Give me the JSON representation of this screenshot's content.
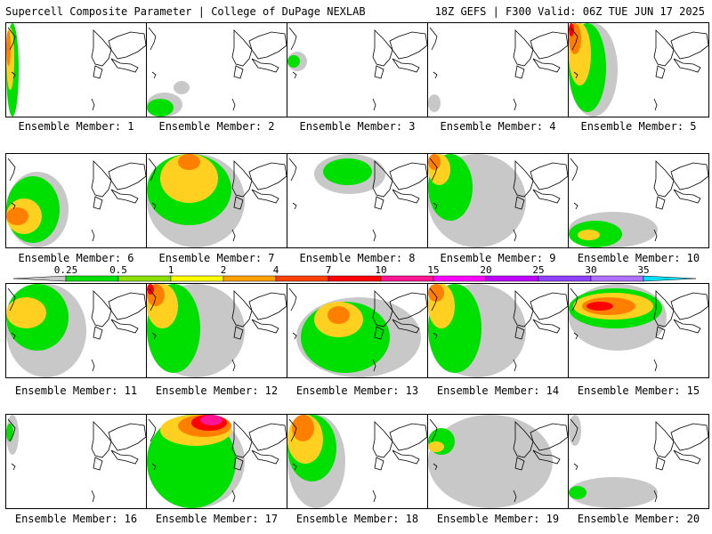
{
  "header": {
    "left": "Supercell Composite Parameter | College of DuPage NEXLAB",
    "right": "18Z GEFS | F300 Valid: 06Z TUE JUN 17 2025"
  },
  "caption_prefix": "Ensemble Member:",
  "members": [
    {
      "number": "1",
      "blobs": [
        {
          "x": 0,
          "y": 0,
          "w": 14,
          "h": 105,
          "c": "#00e000"
        },
        {
          "x": 0,
          "y": 5,
          "w": 9,
          "h": 70,
          "c": "#ffd020"
        },
        {
          "x": 0,
          "y": 8,
          "w": 5,
          "h": 40,
          "c": "#ff8000"
        }
      ]
    },
    {
      "number": "2",
      "blobs": [
        {
          "x": 0,
          "y": 78,
          "w": 40,
          "h": 27,
          "c": "#c8c8c8"
        },
        {
          "x": 0,
          "y": 85,
          "w": 30,
          "h": 20,
          "c": "#00e000"
        },
        {
          "x": 30,
          "y": 65,
          "w": 18,
          "h": 15,
          "c": "#c8c8c8"
        }
      ]
    },
    {
      "number": "3",
      "blobs": [
        {
          "x": 0,
          "y": 32,
          "w": 22,
          "h": 22,
          "c": "#c8c8c8"
        },
        {
          "x": 0,
          "y": 36,
          "w": 14,
          "h": 14,
          "c": "#00e000"
        }
      ]
    },
    {
      "number": "4",
      "blobs": [
        {
          "x": 0,
          "y": 80,
          "w": 14,
          "h": 20,
          "c": "#c8c8c8"
        }
      ]
    },
    {
      "number": "5",
      "blobs": [
        {
          "x": 0,
          "y": 0,
          "w": 55,
          "h": 105,
          "c": "#c8c8c8"
        },
        {
          "x": 0,
          "y": 0,
          "w": 42,
          "h": 100,
          "c": "#00e000"
        },
        {
          "x": 0,
          "y": 0,
          "w": 25,
          "h": 70,
          "c": "#ffd020"
        },
        {
          "x": 0,
          "y": 0,
          "w": 14,
          "h": 35,
          "c": "#ff8000"
        },
        {
          "x": 0,
          "y": 0,
          "w": 6,
          "h": 15,
          "c": "#ff0000"
        }
      ]
    },
    {
      "number": "6",
      "blobs": [
        {
          "x": 0,
          "y": 20,
          "w": 70,
          "h": 85,
          "c": "#c8c8c8"
        },
        {
          "x": 0,
          "y": 25,
          "w": 60,
          "h": 75,
          "c": "#00e000"
        },
        {
          "x": 0,
          "y": 50,
          "w": 40,
          "h": 40,
          "c": "#ffd020"
        },
        {
          "x": 0,
          "y": 60,
          "w": 25,
          "h": 20,
          "c": "#ff8000"
        }
      ]
    },
    {
      "number": "7",
      "blobs": [
        {
          "x": 0,
          "y": 0,
          "w": 110,
          "h": 105,
          "c": "#c8c8c8"
        },
        {
          "x": 0,
          "y": 0,
          "w": 95,
          "h": 80,
          "c": "#00e000"
        },
        {
          "x": 15,
          "y": 0,
          "w": 65,
          "h": 55,
          "c": "#ffd020"
        },
        {
          "x": 35,
          "y": 0,
          "w": 25,
          "h": 18,
          "c": "#ff8000"
        }
      ]
    },
    {
      "number": "8",
      "blobs": [
        {
          "x": 30,
          "y": 0,
          "w": 80,
          "h": 45,
          "c": "#c8c8c8"
        },
        {
          "x": 40,
          "y": 5,
          "w": 55,
          "h": 30,
          "c": "#00e000"
        }
      ]
    },
    {
      "number": "9",
      "blobs": [
        {
          "x": 0,
          "y": 0,
          "w": 110,
          "h": 105,
          "c": "#c8c8c8"
        },
        {
          "x": 0,
          "y": 0,
          "w": 50,
          "h": 75,
          "c": "#00e000"
        },
        {
          "x": 0,
          "y": 0,
          "w": 25,
          "h": 35,
          "c": "#ffd020"
        },
        {
          "x": 0,
          "y": 0,
          "w": 14,
          "h": 18,
          "c": "#ff8000"
        }
      ]
    },
    {
      "number": "10",
      "blobs": [
        {
          "x": 0,
          "y": 65,
          "w": 100,
          "h": 40,
          "c": "#c8c8c8"
        },
        {
          "x": 0,
          "y": 75,
          "w": 60,
          "h": 30,
          "c": "#00e000"
        },
        {
          "x": 10,
          "y": 85,
          "w": 25,
          "h": 12,
          "c": "#ffd020"
        }
      ]
    },
    {
      "number": "11",
      "blobs": [
        {
          "x": 0,
          "y": 0,
          "w": 90,
          "h": 105,
          "c": "#c8c8c8"
        },
        {
          "x": 0,
          "y": 0,
          "w": 70,
          "h": 75,
          "c": "#00e000"
        },
        {
          "x": 0,
          "y": 15,
          "w": 45,
          "h": 35,
          "c": "#ffd020"
        }
      ]
    },
    {
      "number": "12",
      "blobs": [
        {
          "x": 0,
          "y": 0,
          "w": 110,
          "h": 105,
          "c": "#c8c8c8"
        },
        {
          "x": 0,
          "y": 0,
          "w": 60,
          "h": 100,
          "c": "#00e000"
        },
        {
          "x": 0,
          "y": 0,
          "w": 35,
          "h": 50,
          "c": "#ffd020"
        },
        {
          "x": 0,
          "y": 0,
          "w": 20,
          "h": 25,
          "c": "#ff8000"
        },
        {
          "x": 0,
          "y": 0,
          "w": 8,
          "h": 12,
          "c": "#ff0000"
        }
      ]
    },
    {
      "number": "13",
      "blobs": [
        {
          "x": 10,
          "y": 15,
          "w": 140,
          "h": 90,
          "c": "#c8c8c8"
        },
        {
          "x": 15,
          "y": 20,
          "w": 100,
          "h": 80,
          "c": "#00e000"
        },
        {
          "x": 30,
          "y": 20,
          "w": 55,
          "h": 40,
          "c": "#ffd020"
        },
        {
          "x": 45,
          "y": 25,
          "w": 25,
          "h": 20,
          "c": "#ff8000"
        }
      ]
    },
    {
      "number": "14",
      "blobs": [
        {
          "x": 0,
          "y": 0,
          "w": 110,
          "h": 105,
          "c": "#c8c8c8"
        },
        {
          "x": 0,
          "y": 0,
          "w": 60,
          "h": 100,
          "c": "#00e000"
        },
        {
          "x": 0,
          "y": 0,
          "w": 30,
          "h": 50,
          "c": "#ffd020"
        },
        {
          "x": 0,
          "y": 0,
          "w": 18,
          "h": 20,
          "c": "#ff8000"
        }
      ]
    },
    {
      "number": "15",
      "blobs": [
        {
          "x": 0,
          "y": 0,
          "w": 110,
          "h": 75,
          "c": "#c8c8c8"
        },
        {
          "x": 0,
          "y": 5,
          "w": 105,
          "h": 45,
          "c": "#00e000"
        },
        {
          "x": 5,
          "y": 10,
          "w": 90,
          "h": 30,
          "c": "#ffd020"
        },
        {
          "x": 15,
          "y": 15,
          "w": 60,
          "h": 20,
          "c": "#ff8000"
        },
        {
          "x": 20,
          "y": 20,
          "w": 30,
          "h": 10,
          "c": "#ff0000"
        }
      ]
    },
    {
      "number": "16",
      "blobs": [
        {
          "x": 0,
          "y": 0,
          "w": 14,
          "h": 45,
          "c": "#c8c8c8"
        },
        {
          "x": 0,
          "y": 10,
          "w": 8,
          "h": 20,
          "c": "#00e000"
        }
      ]
    },
    {
      "number": "17",
      "blobs": [
        {
          "x": 0,
          "y": 0,
          "w": 110,
          "h": 105,
          "c": "#c8c8c8"
        },
        {
          "x": 0,
          "y": 0,
          "w": 100,
          "h": 105,
          "c": "#00e000"
        },
        {
          "x": 15,
          "y": 0,
          "w": 80,
          "h": 35,
          "c": "#ffd020"
        },
        {
          "x": 35,
          "y": 0,
          "w": 60,
          "h": 25,
          "c": "#ff8000"
        },
        {
          "x": 50,
          "y": 0,
          "w": 40,
          "h": 18,
          "c": "#ff0000"
        },
        {
          "x": 60,
          "y": 0,
          "w": 25,
          "h": 12,
          "c": "#ff1493"
        }
      ]
    },
    {
      "number": "18",
      "blobs": [
        {
          "x": 0,
          "y": 0,
          "w": 65,
          "h": 105,
          "c": "#c8c8c8"
        },
        {
          "x": 0,
          "y": 0,
          "w": 55,
          "h": 75,
          "c": "#00e000"
        },
        {
          "x": 0,
          "y": 0,
          "w": 40,
          "h": 55,
          "c": "#ffd020"
        },
        {
          "x": 5,
          "y": 0,
          "w": 25,
          "h": 30,
          "c": "#ff8000"
        }
      ]
    },
    {
      "number": "19",
      "blobs": [
        {
          "x": 0,
          "y": 0,
          "w": 140,
          "h": 105,
          "c": "#c8c8c8"
        },
        {
          "x": 0,
          "y": 15,
          "w": 30,
          "h": 30,
          "c": "#00e000"
        },
        {
          "x": 0,
          "y": 30,
          "w": 18,
          "h": 12,
          "c": "#ffd020"
        }
      ]
    },
    {
      "number": "20",
      "blobs": [
        {
          "x": 0,
          "y": 0,
          "w": 14,
          "h": 35,
          "c": "#c8c8c8"
        },
        {
          "x": 0,
          "y": 70,
          "w": 100,
          "h": 35,
          "c": "#c8c8c8"
        },
        {
          "x": 0,
          "y": 80,
          "w": 20,
          "h": 15,
          "c": "#00e000"
        }
      ]
    }
  ],
  "colorbar": {
    "ticks": [
      "0.25",
      "0.5",
      "1",
      "2",
      "4",
      "7",
      "10",
      "15",
      "20",
      "25",
      "30",
      "35"
    ],
    "colors": [
      "#c8c8c8",
      "#00e000",
      "#8ce000",
      "#ffff00",
      "#ffa000",
      "#ff4000",
      "#ff0000",
      "#ff1493",
      "#ff00ff",
      "#c000ff",
      "#9040ff",
      "#b070ff",
      "#00e0ff"
    ]
  }
}
